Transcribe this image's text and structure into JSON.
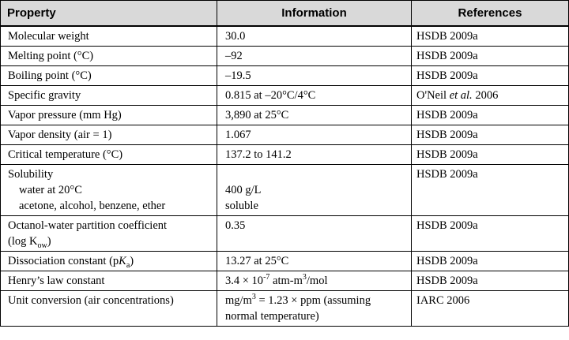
{
  "table": {
    "headers": [
      "Property",
      "Information",
      "References"
    ],
    "rows": [
      {
        "property": "Molecular weight",
        "information": "30.0",
        "reference": "HSDB 2009a"
      },
      {
        "property": "Melting point (°C)",
        "information": "–92",
        "reference": "HSDB 2009a"
      },
      {
        "property": "Boiling point (°C)",
        "information": "–19.5",
        "reference": "HSDB 2009a"
      },
      {
        "property": "Specific gravity",
        "information": "0.815 at –20°C/4°C",
        "reference_pre": "O'Neil ",
        "reference_italic": "et al.",
        "reference_post": " 2006"
      },
      {
        "property": "Vapor pressure (mm Hg)",
        "information": "3,890 at 25°C",
        "reference": "HSDB 2009a"
      },
      {
        "property": "Vapor density (air = 1)",
        "information": "1.067",
        "reference": "HSDB 2009a"
      },
      {
        "property": "Critical temperature (°C)",
        "information": "137.2 to 141.2",
        "reference": "HSDB 2009a"
      },
      {
        "property": "Solubility",
        "sub_water": "water at 20°C",
        "sub_solvents": "acetone, alcohol, benzene, ether",
        "info_water": "400 g/L",
        "info_solvents": "soluble",
        "reference": "HSDB 2009a"
      },
      {
        "property": "Octanol-water partition coefficient",
        "property_line2_pre": "(log K",
        "property_line2_sub": "ow",
        "property_line2_post": ")",
        "information": "0.35",
        "reference": "HSDB 2009a"
      },
      {
        "property_pre": "Dissociation constant (p",
        "property_italic": "K",
        "property_sub": "a",
        "property_post": ")",
        "information": "13.27 at 25°C",
        "reference": "HSDB 2009a"
      },
      {
        "property": "Henry’s law constant",
        "info_pre": "3.4 × 10",
        "info_sup1": "-7",
        "info_mid": " atm-m",
        "info_sup2": "3",
        "info_post": "/mol",
        "reference": "HSDB 2009a"
      },
      {
        "property": "Unit conversion (air concentrations)",
        "info_pre": "mg/m",
        "info_sup": "3",
        "info_post": " = 1.23 × ppm (assuming",
        "info_line2": "normal temperature)",
        "reference": "IARC 2006"
      }
    ]
  }
}
